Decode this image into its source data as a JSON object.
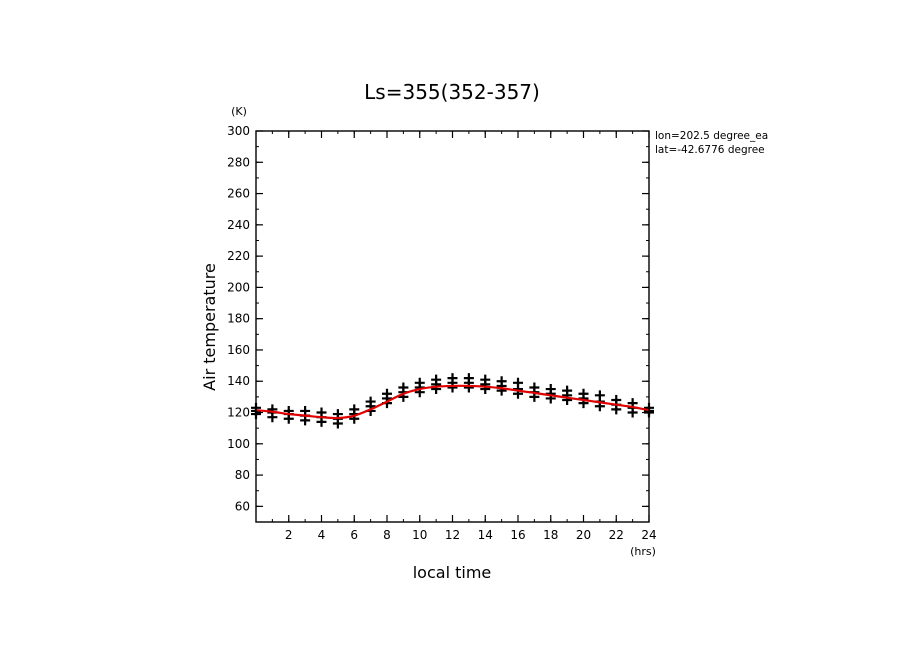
{
  "chart_data": {
    "type": "scatter",
    "title": "Ls=355(352-357)",
    "xlabel": "local time",
    "ylabel": "Air temperature",
    "x_unit": "(hrs)",
    "y_unit": "(K)",
    "xlim": [
      0,
      24
    ],
    "ylim": [
      50,
      300
    ],
    "x_ticks": [
      2,
      4,
      6,
      8,
      10,
      12,
      14,
      16,
      18,
      20,
      22,
      24
    ],
    "y_ticks": [
      60,
      80,
      100,
      120,
      140,
      160,
      180,
      200,
      220,
      240,
      260,
      280,
      300
    ],
    "annotations": [
      "lon=202.5 degree_ea",
      "lat=-42.6776 degree"
    ],
    "grid": false,
    "series": [
      {
        "kind": "scatter-markers",
        "color": "#000000",
        "x": [
          0,
          1,
          2,
          3,
          4,
          5,
          6,
          7,
          8,
          9,
          10,
          11,
          12,
          13,
          14,
          15,
          16,
          17,
          18,
          19,
          20,
          21,
          22,
          23,
          24
        ],
        "values": [
          [
            123,
            121,
            119
          ],
          [
            122,
            120,
            117
          ],
          [
            121,
            119,
            116
          ],
          [
            121,
            118,
            115
          ],
          [
            120,
            117,
            114
          ],
          [
            119,
            116,
            113
          ],
          [
            122,
            119,
            116
          ],
          [
            127,
            124,
            121
          ],
          [
            132,
            129,
            126
          ],
          [
            136,
            133,
            130
          ],
          [
            139,
            136,
            133
          ],
          [
            141,
            138,
            135
          ],
          [
            142,
            139,
            136
          ],
          [
            142,
            139,
            136
          ],
          [
            141,
            138,
            135
          ],
          [
            140,
            137,
            134
          ],
          [
            139,
            135,
            132
          ],
          [
            136,
            133,
            130
          ],
          [
            135,
            132,
            129
          ],
          [
            134,
            131,
            128
          ],
          [
            132,
            129,
            126
          ],
          [
            131,
            127,
            124
          ],
          [
            128,
            125,
            122
          ],
          [
            126,
            123,
            120
          ],
          [
            123,
            121,
            120
          ]
        ]
      },
      {
        "kind": "line",
        "color": "#e00000",
        "x": [
          0,
          1,
          2,
          3,
          4,
          5,
          6,
          7,
          8,
          9,
          10,
          11,
          12,
          13,
          14,
          15,
          16,
          17,
          18,
          19,
          20,
          21,
          22,
          23,
          24
        ],
        "values": [
          121.5,
          120.5,
          119,
          118,
          117,
          116.5,
          118,
          122,
          127,
          132,
          135,
          136.5,
          137,
          137,
          136.5,
          135.5,
          134,
          132.5,
          131,
          129.5,
          128,
          126.5,
          125,
          123.5,
          121.5
        ]
      }
    ]
  }
}
